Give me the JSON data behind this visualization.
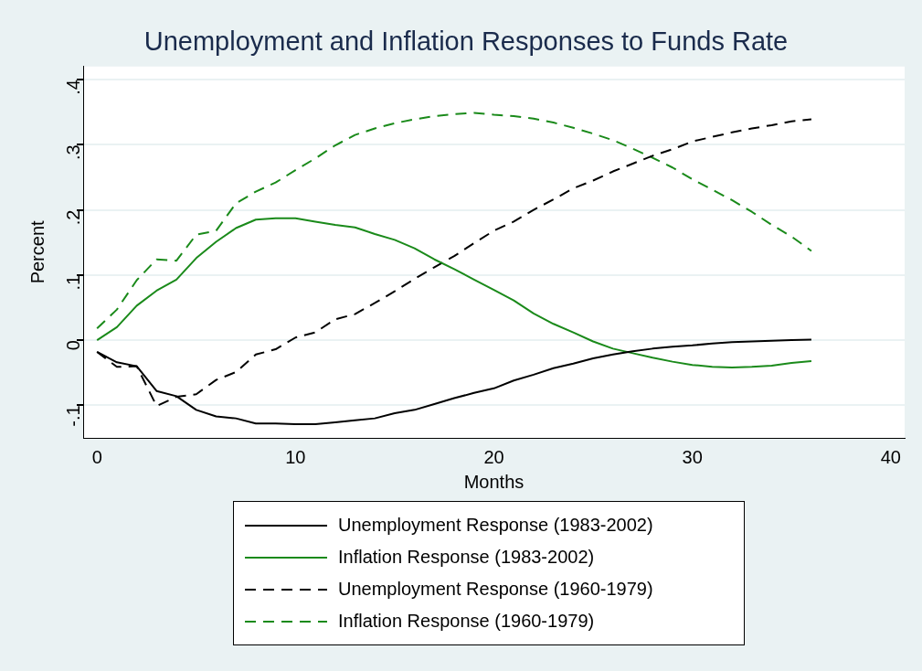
{
  "chart_data": {
    "type": "line",
    "title": "Unemployment and Inflation Responses to Funds Rate",
    "xlabel": "Months",
    "ylabel": "Percent",
    "x": [
      0,
      1,
      2,
      3,
      4,
      5,
      6,
      7,
      8,
      9,
      10,
      11,
      12,
      13,
      14,
      15,
      16,
      17,
      18,
      19,
      20,
      21,
      22,
      23,
      24,
      25,
      26,
      27,
      28,
      29,
      30,
      31,
      32,
      33,
      34,
      35,
      36
    ],
    "series": [
      {
        "name": "Unemployment Response (1983-2002)",
        "color": "#000000",
        "line_style": "solid",
        "values": [
          -0.018,
          -0.034,
          -0.04,
          -0.078,
          -0.086,
          -0.107,
          -0.117,
          -0.12,
          -0.128,
          -0.128,
          -0.129,
          -0.129,
          -0.126,
          -0.123,
          -0.12,
          -0.112,
          -0.107,
          -0.098,
          -0.089,
          -0.081,
          -0.074,
          -0.062,
          -0.053,
          -0.043,
          -0.036,
          -0.028,
          -0.022,
          -0.017,
          -0.013,
          -0.01,
          -0.008,
          -0.005,
          -0.003,
          -0.002,
          -0.001,
          0.0,
          0.001
        ]
      },
      {
        "name": "Inflation Response (1983-2002)",
        "color": "#1a8a1a",
        "line_style": "solid",
        "values": [
          0.0,
          0.02,
          0.053,
          0.076,
          0.093,
          0.126,
          0.151,
          0.172,
          0.185,
          0.187,
          0.187,
          0.182,
          0.177,
          0.173,
          0.163,
          0.154,
          0.141,
          0.124,
          0.109,
          0.093,
          0.077,
          0.061,
          0.041,
          0.025,
          0.012,
          -0.002,
          -0.013,
          -0.02,
          -0.027,
          -0.033,
          -0.038,
          -0.041,
          -0.042,
          -0.041,
          -0.039,
          -0.035,
          -0.032
        ]
      },
      {
        "name": "Unemployment Response (1960-1979)",
        "color": "#000000",
        "line_style": "dashed",
        "values": [
          -0.018,
          -0.041,
          -0.04,
          -0.101,
          -0.087,
          -0.083,
          -0.061,
          -0.049,
          -0.022,
          -0.014,
          0.004,
          0.012,
          0.032,
          0.04,
          0.057,
          0.075,
          0.094,
          0.112,
          0.129,
          0.149,
          0.168,
          0.182,
          0.2,
          0.216,
          0.233,
          0.245,
          0.259,
          0.271,
          0.283,
          0.293,
          0.305,
          0.312,
          0.319,
          0.325,
          0.33,
          0.336,
          0.339
        ]
      },
      {
        "name": "Inflation Response (1960-1979)",
        "color": "#1a8a1a",
        "line_style": "dashed",
        "values": [
          0.018,
          0.047,
          0.092,
          0.124,
          0.122,
          0.162,
          0.168,
          0.21,
          0.228,
          0.242,
          0.261,
          0.279,
          0.299,
          0.315,
          0.325,
          0.333,
          0.339,
          0.344,
          0.347,
          0.349,
          0.346,
          0.344,
          0.34,
          0.334,
          0.326,
          0.317,
          0.307,
          0.294,
          0.28,
          0.265,
          0.247,
          0.231,
          0.215,
          0.197,
          0.177,
          0.159,
          0.137
        ]
      }
    ],
    "xlim": [
      -0.7,
      40.7
    ],
    "xticks": [
      0,
      10,
      20,
      30,
      40
    ],
    "ylim": [
      -0.15,
      0.42
    ],
    "yticks": [
      {
        "value": -0.1,
        "label": "-.1"
      },
      0,
      {
        "value": 0.1,
        "label": ".1"
      },
      {
        "value": 0.2,
        "label": ".2"
      },
      {
        "value": 0.3,
        "label": ".3"
      },
      {
        "value": 0.4,
        "label": ".4"
      }
    ],
    "grid": "y",
    "legend": "bottom",
    "marker": "none"
  }
}
